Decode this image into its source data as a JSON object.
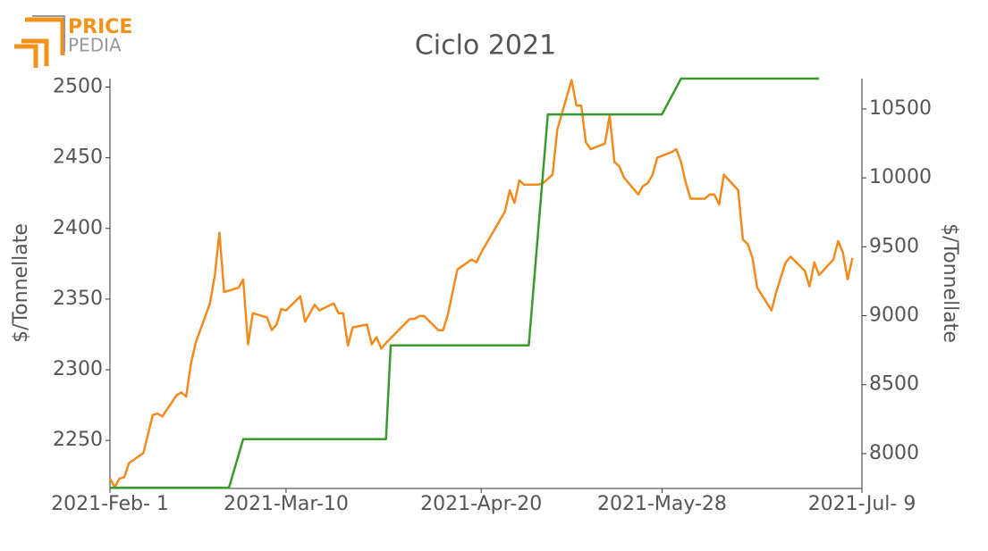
{
  "logo": {
    "top": "PRICE",
    "bottom": "PEDIA"
  },
  "chart_data": {
    "type": "line",
    "title": "Ciclo 2021",
    "ylabel": "$/Tonnellate",
    "y2label": "$/Tonnellate",
    "xlim": [
      "2021-02-01",
      "2021-07-09"
    ],
    "xticks": [
      {
        "value": "2021-02-01",
        "label": "2021-Feb- 1"
      },
      {
        "value": "2021-03-10",
        "label": "2021-Mar-10"
      },
      {
        "value": "2021-04-20",
        "label": "2021-Apr-20"
      },
      {
        "value": "2021-05-28",
        "label": "2021-May-28"
      },
      {
        "value": "2021-07-09",
        "label": "2021-Jul- 9"
      }
    ],
    "ylim": [
      2216,
      2506
    ],
    "yticks": [
      2250,
      2300,
      2350,
      2400,
      2450,
      2500
    ],
    "y2lim": [
      7747,
      10720
    ],
    "y2ticks": [
      8000,
      8500,
      9000,
      9500,
      10000,
      10500
    ],
    "grid": false,
    "series": [
      {
        "name": "Orange",
        "color": "#f28a1e",
        "axis": "y",
        "x": [
          "2021-02-01",
          "2021-02-02",
          "2021-02-03",
          "2021-02-04",
          "2021-02-05",
          "2021-02-08",
          "2021-02-10",
          "2021-02-11",
          "2021-02-12",
          "2021-02-15",
          "2021-02-16",
          "2021-02-17",
          "2021-02-18",
          "2021-02-19",
          "2021-02-22",
          "2021-02-23",
          "2021-02-24",
          "2021-02-25",
          "2021-02-28",
          "2021-03-01",
          "2021-03-02",
          "2021-03-03",
          "2021-03-06",
          "2021-03-07",
          "2021-03-08",
          "2021-03-09",
          "2021-03-10",
          "2021-03-13",
          "2021-03-14",
          "2021-03-15",
          "2021-03-16",
          "2021-03-17",
          "2021-03-20",
          "2021-03-21",
          "2021-03-22",
          "2021-03-23",
          "2021-03-24",
          "2021-03-27",
          "2021-03-28",
          "2021-03-29",
          "2021-03-30",
          "2021-03-31",
          "2021-04-05",
          "2021-04-06",
          "2021-04-07",
          "2021-04-08",
          "2021-04-11",
          "2021-04-12",
          "2021-04-13",
          "2021-04-14",
          "2021-04-15",
          "2021-04-18",
          "2021-04-19",
          "2021-04-20",
          "2021-04-25",
          "2021-04-26",
          "2021-04-27",
          "2021-04-28",
          "2021-04-29",
          "2021-05-02",
          "2021-05-03",
          "2021-05-05",
          "2021-05-06",
          "2021-05-09",
          "2021-05-10",
          "2021-05-11",
          "2021-05-12",
          "2021-05-13",
          "2021-05-16",
          "2021-05-17",
          "2021-05-18",
          "2021-05-19",
          "2021-05-20",
          "2021-05-23",
          "2021-05-24",
          "2021-05-25",
          "2021-05-26",
          "2021-05-27",
          "2021-05-30",
          "2021-05-31",
          "2021-06-01",
          "2021-06-02",
          "2021-06-03",
          "2021-06-06",
          "2021-06-07",
          "2021-06-08",
          "2021-06-09",
          "2021-06-10",
          "2021-06-13",
          "2021-06-14",
          "2021-06-15",
          "2021-06-16",
          "2021-06-17",
          "2021-06-20",
          "2021-06-21",
          "2021-06-22",
          "2021-06-23",
          "2021-06-24",
          "2021-06-27",
          "2021-06-28",
          "2021-06-29",
          "2021-06-30",
          "2021-07-03",
          "2021-07-04",
          "2021-07-05",
          "2021-07-06",
          "2021-07-07"
        ],
        "values": [
          2223,
          2217,
          2223,
          2224,
          2234,
          2241,
          2268,
          2269,
          2267,
          2282,
          2284,
          2281,
          2304,
          2319,
          2347,
          2366,
          2397,
          2355,
          2358,
          2364,
          2318,
          2340,
          2337,
          2328,
          2332,
          2343,
          2342,
          2352,
          2334,
          2340,
          2346,
          2342,
          2347,
          2340,
          2340,
          2317,
          2330,
          2332,
          2318,
          2323,
          2315,
          2319,
          2336,
          2336,
          2338,
          2338,
          2328,
          2328,
          2339,
          2355,
          2371,
          2378,
          2376,
          2383,
          2412,
          2427,
          2418,
          2434,
          2431,
          2431,
          2432,
          2438,
          2470,
          2505,
          2487,
          2487,
          2461,
          2456,
          2460,
          2480,
          2447,
          2444,
          2436,
          2424,
          2430,
          2432,
          2438,
          2450,
          2454,
          2456,
          2447,
          2432,
          2421,
          2421,
          2424,
          2424,
          2417,
          2438,
          2427,
          2392,
          2389,
          2379,
          2358,
          2342,
          2355,
          2366,
          2376,
          2380,
          2370,
          2359,
          2376,
          2367,
          2378,
          2391,
          2383,
          2364,
          2379
        ]
      },
      {
        "name": "Green",
        "color": "#3a9a2e",
        "axis": "y2",
        "x": [
          "2021-02-01",
          "2021-02-26",
          "2021-03-01",
          "2021-03-31",
          "2021-04-01",
          "2021-04-30",
          "2021-05-04",
          "2021-05-28",
          "2021-06-01",
          "2021-06-30"
        ],
        "values": [
          7753,
          7753,
          8105,
          8105,
          8785,
          8785,
          10460,
          10460,
          10720,
          10720
        ]
      }
    ]
  }
}
